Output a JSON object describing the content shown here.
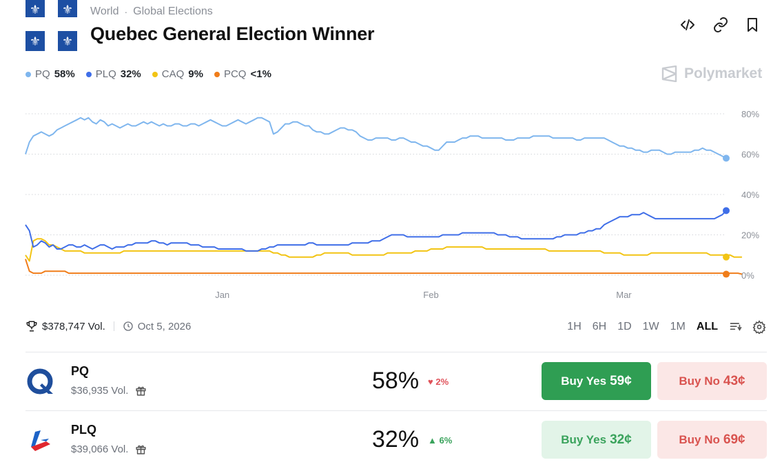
{
  "breadcrumb": {
    "category": "World",
    "subcategory": "Global Elections"
  },
  "title": "Quebec General Election Winner",
  "header_icons": [
    "code-icon",
    "link-icon",
    "bookmark-icon"
  ],
  "legend": [
    {
      "name": "PQ",
      "value": "58%",
      "color": "#7fb6ee"
    },
    {
      "name": "PLQ",
      "value": "32%",
      "color": "#3f6ee8"
    },
    {
      "name": "CAQ",
      "value": "9%",
      "color": "#f2c414"
    },
    {
      "name": "PCQ",
      "value": "<1%",
      "color": "#f07d1a"
    }
  ],
  "watermark": "Polymarket",
  "chart_data": {
    "type": "line",
    "x_tick_labels": [
      "Jan",
      "Feb",
      "Mar"
    ],
    "x_tick_index": [
      50,
      103,
      152
    ],
    "y_ticks": [
      "80%",
      "60%",
      "40%",
      "20%",
      "0%"
    ],
    "ylim": [
      0,
      80
    ],
    "grid": true,
    "series": [
      {
        "name": "PQ",
        "color": "#7fb6ee",
        "values": [
          60,
          66,
          69,
          70,
          71,
          70,
          69,
          70,
          72,
          73,
          74,
          75,
          76,
          77,
          78,
          77,
          78,
          76,
          75,
          77,
          76,
          74,
          75,
          74,
          73,
          74,
          75,
          74,
          74,
          75,
          76,
          75,
          76,
          75,
          74,
          75,
          74,
          74,
          75,
          75,
          74,
          74,
          75,
          75,
          74,
          75,
          76,
          77,
          76,
          75,
          74,
          74,
          75,
          76,
          77,
          76,
          75,
          76,
          77,
          78,
          78,
          77,
          76,
          70,
          71,
          73,
          75,
          75,
          76,
          76,
          75,
          74,
          74,
          72,
          71,
          71,
          70,
          70,
          71,
          72,
          73,
          73,
          72,
          72,
          71,
          69,
          68,
          67,
          67,
          68,
          68,
          68,
          68,
          67,
          67,
          68,
          68,
          67,
          66,
          66,
          65,
          64,
          64,
          63,
          62,
          62,
          64,
          66,
          66,
          66,
          67,
          68,
          68,
          69,
          69,
          69,
          68,
          68,
          68,
          68,
          68,
          68,
          67,
          67,
          67,
          68,
          68,
          68,
          68,
          69,
          69,
          69,
          69,
          69,
          68,
          68,
          68,
          68,
          68,
          68,
          67,
          67,
          68,
          68,
          68,
          68,
          68,
          68,
          67,
          66,
          65,
          64,
          64,
          63,
          63,
          62,
          62,
          61,
          61,
          62,
          62,
          62,
          61,
          60,
          60,
          61,
          61,
          61,
          61,
          61,
          62,
          62,
          63,
          62,
          62,
          61,
          60,
          59,
          58
        ]
      },
      {
        "name": "PLQ",
        "color": "#3f6ee8",
        "values": [
          25,
          22,
          14,
          15,
          17,
          16,
          14,
          15,
          13,
          13,
          14,
          15,
          15,
          14,
          14,
          15,
          14,
          13,
          14,
          15,
          15,
          14,
          13,
          14,
          14,
          14,
          15,
          15,
          16,
          16,
          16,
          16,
          17,
          17,
          16,
          16,
          15,
          16,
          16,
          16,
          16,
          16,
          15,
          15,
          15,
          14,
          14,
          14,
          14,
          13,
          13,
          13,
          13,
          13,
          13,
          13,
          12,
          12,
          12,
          12,
          13,
          13,
          14,
          14,
          15,
          15,
          15,
          15,
          15,
          15,
          15,
          15,
          16,
          16,
          15,
          15,
          15,
          15,
          15,
          15,
          15,
          15,
          15,
          16,
          16,
          16,
          16,
          16,
          17,
          17,
          17,
          18,
          19,
          20,
          20,
          20,
          20,
          19,
          19,
          19,
          19,
          19,
          19,
          19,
          19,
          19,
          20,
          20,
          20,
          20,
          20,
          21,
          21,
          21,
          21,
          21,
          21,
          21,
          21,
          21,
          20,
          20,
          20,
          19,
          19,
          19,
          18,
          18,
          18,
          18,
          18,
          18,
          18,
          18,
          18,
          19,
          19,
          20,
          20,
          20,
          20,
          21,
          21,
          22,
          22,
          23,
          23,
          25,
          26,
          27,
          28,
          29,
          29,
          29,
          30,
          30,
          30,
          31,
          30,
          29,
          28,
          28,
          28,
          28,
          28,
          28,
          28,
          28,
          28,
          28,
          28,
          28,
          28,
          28,
          28,
          28,
          29,
          30,
          32
        ]
      },
      {
        "name": "CAQ",
        "color": "#f2c414",
        "values": [
          10,
          7,
          17,
          18,
          18,
          17,
          15,
          15,
          14,
          13,
          12,
          12,
          12,
          12,
          12,
          11,
          11,
          11,
          11,
          11,
          11,
          11,
          11,
          11,
          11,
          12,
          12,
          12,
          12,
          12,
          12,
          12,
          12,
          12,
          12,
          12,
          12,
          12,
          12,
          12,
          12,
          12,
          12,
          12,
          12,
          12,
          12,
          12,
          12,
          12,
          12,
          12,
          12,
          12,
          12,
          12,
          12,
          12,
          12,
          12,
          12,
          12,
          12,
          11,
          11,
          10,
          10,
          9,
          9,
          9,
          9,
          9,
          9,
          9,
          10,
          10,
          11,
          11,
          11,
          11,
          11,
          11,
          11,
          10,
          10,
          10,
          10,
          10,
          10,
          10,
          10,
          10,
          11,
          11,
          11,
          11,
          11,
          11,
          11,
          12,
          12,
          12,
          12,
          13,
          13,
          13,
          13,
          14,
          14,
          14,
          14,
          14,
          14,
          14,
          14,
          14,
          14,
          13,
          13,
          13,
          13,
          13,
          13,
          13,
          13,
          13,
          13,
          13,
          13,
          13,
          13,
          13,
          13,
          12,
          12,
          12,
          12,
          12,
          12,
          12,
          12,
          12,
          12,
          12,
          12,
          12,
          12,
          11,
          11,
          11,
          11,
          11,
          10,
          10,
          10,
          10,
          10,
          10,
          10,
          11,
          11,
          11,
          11,
          11,
          11,
          11,
          11,
          11,
          11,
          11,
          11,
          11,
          11,
          11,
          10,
          10,
          10,
          10,
          10,
          10,
          9,
          9,
          9
        ]
      },
      {
        "name": "PCQ",
        "color": "#f07d1a",
        "values": [
          8,
          2,
          1,
          1,
          1,
          2,
          2,
          2,
          2,
          2,
          2,
          1,
          1,
          1,
          1,
          1,
          1,
          1,
          1,
          1,
          1,
          1,
          1,
          1,
          1,
          1,
          1,
          1,
          1,
          1,
          1,
          1,
          1,
          1,
          1,
          1,
          1,
          1,
          1,
          1,
          1,
          1,
          1,
          1,
          1,
          1,
          1,
          1,
          1,
          1,
          1,
          1,
          1,
          1,
          1,
          1,
          1,
          1,
          1,
          1,
          1,
          1,
          1,
          1,
          1,
          1,
          1,
          1,
          1,
          1,
          1,
          1,
          1,
          1,
          1,
          1,
          1,
          1,
          1,
          1,
          1,
          1,
          1,
          1,
          1,
          1,
          1,
          1,
          1,
          1,
          1,
          1,
          1,
          1,
          1,
          1,
          1,
          1,
          1,
          1,
          1,
          1,
          1,
          1,
          1,
          1,
          1,
          1,
          1,
          1,
          1,
          1,
          1,
          1,
          1,
          1,
          1,
          1,
          1,
          1,
          1,
          1,
          1,
          1,
          1,
          1,
          1,
          1,
          1,
          1,
          1,
          1,
          1,
          1,
          1,
          1,
          1,
          1,
          1,
          1,
          1,
          1,
          1,
          1,
          1,
          1,
          1,
          1,
          1,
          1,
          1,
          1,
          1,
          1,
          1,
          1,
          1,
          1,
          1,
          1,
          1,
          1,
          1,
          1,
          1,
          1,
          1,
          1,
          1,
          1,
          1,
          1,
          1,
          1,
          1,
          1,
          1,
          1,
          1,
          1,
          1,
          1,
          0.5
        ]
      }
    ]
  },
  "stats": {
    "volume": "$378,747 Vol.",
    "date": "Oct 5, 2026"
  },
  "ranges": [
    {
      "label": "1H",
      "active": false
    },
    {
      "label": "6H",
      "active": false
    },
    {
      "label": "1D",
      "active": false
    },
    {
      "label": "1W",
      "active": false
    },
    {
      "label": "1M",
      "active": false
    },
    {
      "label": "ALL",
      "active": true
    }
  ],
  "outcomes": [
    {
      "name": "PQ",
      "volume": "$36,935 Vol.",
      "percent": "58%",
      "change": "2%",
      "change_dir": "down",
      "buy_yes_label": "Buy Yes",
      "buy_yes_price": "59¢",
      "buy_no_label": "Buy No",
      "buy_no_price": "43¢"
    },
    {
      "name": "PLQ",
      "volume": "$39,066 Vol.",
      "percent": "32%",
      "change": "6%",
      "change_dir": "up",
      "buy_yes_label": "Buy Yes",
      "buy_yes_price": "32¢",
      "buy_no_label": "Buy No",
      "buy_no_price": "69¢"
    }
  ]
}
